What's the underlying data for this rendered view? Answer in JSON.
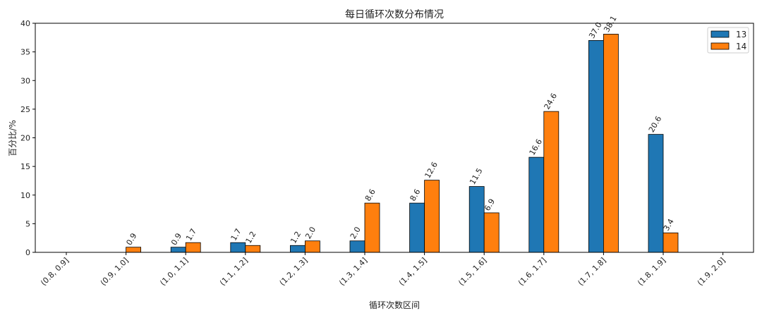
{
  "chart_data": {
    "type": "bar",
    "title": "每日循环次数分布情况",
    "xlabel": "循环次数区间",
    "ylabel": "百分比/%",
    "ylim": [
      0,
      40
    ],
    "yticks": [
      0,
      5,
      10,
      15,
      20,
      25,
      30,
      35,
      40
    ],
    "categories": [
      "(0.8, 0.9]",
      "(0.9, 1.0]",
      "(1.0, 1.1]",
      "(1.1, 1.2]",
      "(1.2, 1.3]",
      "(1.3, 1.4]",
      "(1.4, 1.5]",
      "(1.5, 1.6]",
      "(1.6, 1.7]",
      "(1.7, 1.8]",
      "(1.8, 1.9]",
      "(1.9, 2.0]"
    ],
    "series": [
      {
        "name": "13",
        "color": "#1f77b4",
        "values": [
          0,
          0,
          0.9,
          1.7,
          1.2,
          2.0,
          8.6,
          11.5,
          16.6,
          37.0,
          20.6,
          0
        ]
      },
      {
        "name": "14",
        "color": "#ff7f0e",
        "values": [
          0,
          0.9,
          1.7,
          1.2,
          2.0,
          8.6,
          12.6,
          6.9,
          24.6,
          38.1,
          3.4,
          0
        ]
      }
    ],
    "grid": false,
    "legend": "top-right"
  }
}
